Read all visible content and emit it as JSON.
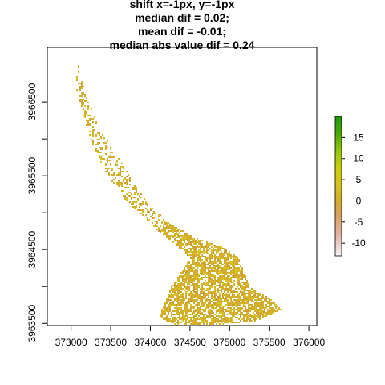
{
  "chart_data": {
    "type": "heatmap",
    "title_lines": [
      "shift x=-1px, y=-1px",
      "median dif = 0.02;",
      "mean dif = -0.01;",
      "median abs value dif = 0.24"
    ],
    "xlabel": "",
    "ylabel": "",
    "xlim": [
      372700,
      376100
    ],
    "ylim": [
      3963470,
      3967240
    ],
    "x_ticks": [
      373000,
      373500,
      374000,
      374500,
      375000,
      375500,
      376000
    ],
    "x_tick_labels": [
      "373000",
      "373500",
      "374000",
      "374500",
      "375000",
      "375500",
      "376000"
    ],
    "y_ticks": [
      3963500,
      3964000,
      3964500,
      3965000,
      3965500,
      3966000,
      3966500
    ],
    "y_tick_labels": [
      "3963500",
      "",
      "3964500",
      "",
      "3965500",
      "",
      "3966500"
    ],
    "grid": false,
    "colorbar": {
      "range": [
        -13,
        20
      ],
      "ticks": [
        -10,
        -5,
        0,
        5,
        10,
        15
      ],
      "tick_labels": [
        "-10",
        "-5",
        "0",
        "5",
        "10",
        "15"
      ],
      "color_stops": [
        {
          "value": -13,
          "color": "#f2f2f2"
        },
        {
          "value": -8,
          "color": "#e2b3a6"
        },
        {
          "value": -3,
          "color": "#d8a25a"
        },
        {
          "value": 0,
          "color": "#d3ac2e"
        },
        {
          "value": 4,
          "color": "#d4c21e"
        },
        {
          "value": 8,
          "color": "#c8cd0c"
        },
        {
          "value": 12,
          "color": "#8fc40a"
        },
        {
          "value": 16,
          "color": "#4aa808"
        },
        {
          "value": 20,
          "color": "#1d9a0c"
        }
      ]
    },
    "raster": {
      "cell_color_main": "#d4af2c",
      "cell_color_high": "#d9c41f",
      "cell_color_low": "#d29b3a",
      "typical_value": 0.02,
      "region_outline_xy": [
        [
          373080,
          3967020
        ],
        [
          373180,
          3966600
        ],
        [
          373350,
          3966150
        ],
        [
          373650,
          3965650
        ],
        [
          373950,
          3965150
        ],
        [
          374250,
          3964850
        ],
        [
          374600,
          3964650
        ],
        [
          374900,
          3964550
        ],
        [
          375100,
          3964400
        ],
        [
          375250,
          3964000
        ],
        [
          375500,
          3963850
        ],
        [
          375650,
          3963700
        ],
        [
          375350,
          3963550
        ],
        [
          374900,
          3963500
        ],
        [
          374300,
          3963480
        ],
        [
          374100,
          3963600
        ],
        [
          374250,
          3964000
        ],
        [
          374500,
          3964400
        ],
        [
          374100,
          3964750
        ],
        [
          373700,
          3965150
        ],
        [
          373400,
          3965600
        ],
        [
          373200,
          3966100
        ],
        [
          373050,
          3966700
        ],
        [
          373080,
          3967020
        ]
      ]
    }
  }
}
